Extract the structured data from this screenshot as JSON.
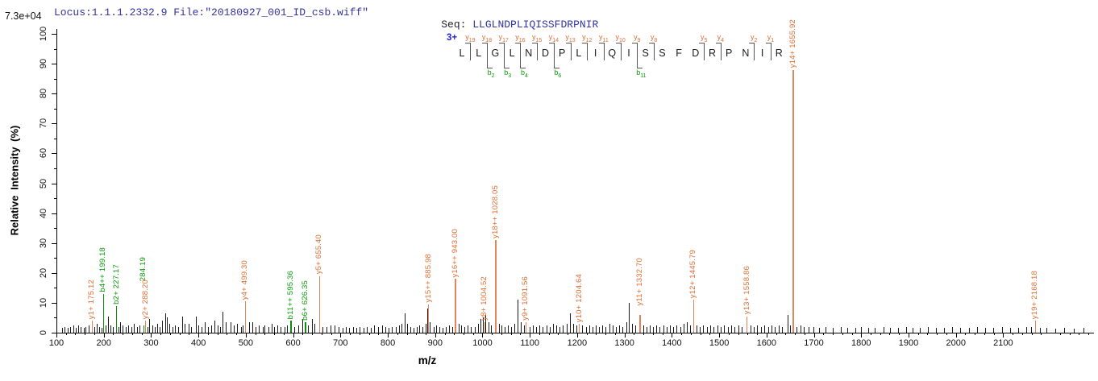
{
  "header": {
    "locus_file": "Locus:1.1.1.2332.9 File:\"20180927_001_ID_csb.wiff\"",
    "seq_label": "Seq:",
    "sequence": "LLGLNDPLIQISSFDRPNIR"
  },
  "colors": {
    "header_text": "#32329E",
    "charge_text": "#1F1FD6",
    "y_ion_text": "#DC6F33",
    "y_ion_line": "#E2855A",
    "b_ion_text": "#0B9B0B",
    "b_ion_line": "#0D8C0D",
    "noise_line": "#1a1a1a",
    "axis": "#000000"
  },
  "ladder": {
    "charge": "3+",
    "residues": [
      "L",
      "L",
      "G",
      "L",
      "N",
      "D",
      "P",
      "L",
      "I",
      "Q",
      "I",
      "S",
      "S",
      "F",
      "D",
      "R",
      "P",
      "N",
      "I",
      "R"
    ],
    "y_ion_ticks": [
      {
        "after": 1,
        "label": "y19"
      },
      {
        "after": 2,
        "label": "y18"
      },
      {
        "after": 3,
        "label": "y17"
      },
      {
        "after": 4,
        "label": "y16"
      },
      {
        "after": 5,
        "label": "y15"
      },
      {
        "after": 6,
        "label": "y14"
      },
      {
        "after": 7,
        "label": "y13"
      },
      {
        "after": 8,
        "label": "y12"
      },
      {
        "after": 9,
        "label": "y11"
      },
      {
        "after": 10,
        "label": "y10"
      },
      {
        "after": 11,
        "label": "y9"
      },
      {
        "after": 12,
        "label": "y8"
      },
      {
        "after": 15,
        "label": "y5"
      },
      {
        "after": 16,
        "label": "y4"
      },
      {
        "after": 18,
        "label": "y2"
      },
      {
        "after": 19,
        "label": "y1"
      }
    ],
    "b_ion_ticks": [
      {
        "after": 2,
        "label": "b2"
      },
      {
        "after": 3,
        "label": "b3"
      },
      {
        "after": 4,
        "label": "b4"
      },
      {
        "after": 6,
        "label": "b6"
      },
      {
        "after": 11,
        "label": "b11"
      }
    ]
  },
  "chart_data": {
    "type": "bar",
    "subtype": "mass-spectrum",
    "title": "",
    "xlabel": "m/z",
    "ylabel": "Relative Intensity (%)",
    "intensity_scale_label": "7.3e+04",
    "xlim": [
      100,
      2290
    ],
    "ylim": [
      0,
      100
    ],
    "x_ticks": [
      100,
      200,
      300,
      400,
      500,
      600,
      700,
      800,
      900,
      1000,
      1100,
      1200,
      1300,
      1400,
      1500,
      1600,
      1700,
      1800,
      1900,
      2000,
      2100
    ],
    "x_minor_step": 20,
    "y_ticks": [
      0,
      10,
      20,
      30,
      40,
      50,
      60,
      70,
      80,
      90,
      100
    ],
    "y_minor_step": 5,
    "grid": false,
    "labeled_peaks": [
      {
        "label": "y1+ 175.12",
        "mz": 175.12,
        "intensity": 4,
        "type": "y"
      },
      {
        "label": "b4++ 199.18",
        "mz": 199.18,
        "intensity": 13,
        "type": "b"
      },
      {
        "label": "b2+ 227.17",
        "mz": 227.17,
        "intensity": 9,
        "type": "b"
      },
      {
        "label": "284.19",
        "mz": 284.19,
        "intensity": 2.5,
        "type": "b",
        "lift": 52
      },
      {
        "label": "y2+ 288.20",
        "mz": 288.2,
        "intensity": 4,
        "type": "y"
      },
      {
        "label": "y4+ 499.30",
        "mz": 499.3,
        "intensity": 10.5,
        "type": "y"
      },
      {
        "label": "b11++ 595.36",
        "mz": 595.36,
        "intensity": 4,
        "type": "b"
      },
      {
        "label": "b6+ 626.35",
        "mz": 626.35,
        "intensity": 3.5,
        "type": "b"
      },
      {
        "label": "y5+ 655.40",
        "mz": 655.4,
        "intensity": 19,
        "type": "y"
      },
      {
        "label": "y15++ 885.98",
        "mz": 885.98,
        "intensity": 9.5,
        "type": "y"
      },
      {
        "label": "y16++ 943.00",
        "mz": 943.0,
        "intensity": 18,
        "type": "y"
      },
      {
        "label": "y8+ 1004.52",
        "mz": 1004.52,
        "intensity": 3.5,
        "type": "y"
      },
      {
        "label": "y18++ 1028.05",
        "mz": 1028.05,
        "intensity": 31,
        "type": "y"
      },
      {
        "label": "y9+ 1091.56",
        "mz": 1091.56,
        "intensity": 3.5,
        "type": "y"
      },
      {
        "label": "y10+ 1204.64",
        "mz": 1204.64,
        "intensity": 3,
        "type": "y"
      },
      {
        "label": "y11+ 1332.70",
        "mz": 1332.7,
        "intensity": 6,
        "type": "y",
        "lift": 9
      },
      {
        "label": "y12+ 1445.79",
        "mz": 1445.79,
        "intensity": 11,
        "type": "y"
      },
      {
        "label": "y13+ 1558.86",
        "mz": 1558.86,
        "intensity": 5.5,
        "type": "y"
      },
      {
        "label": "y14+ 1655.92",
        "mz": 1655.92,
        "intensity": 88,
        "type": "y"
      },
      {
        "label": "y19+ 2168.18",
        "mz": 2168.18,
        "intensity": 4,
        "type": "y"
      }
    ],
    "noise_peaks": [
      [
        113,
        1.5
      ],
      [
        118,
        2
      ],
      [
        124,
        1.5
      ],
      [
        130,
        2
      ],
      [
        136,
        2.5
      ],
      [
        141,
        1.5
      ],
      [
        147,
        2.5
      ],
      [
        152,
        2
      ],
      [
        158,
        1.5
      ],
      [
        163,
        2
      ],
      [
        169,
        2.5
      ],
      [
        181,
        2
      ],
      [
        186,
        3
      ],
      [
        191,
        2
      ],
      [
        196,
        1.5
      ],
      [
        204,
        2.5
      ],
      [
        210,
        5.5
      ],
      [
        215,
        2.5
      ],
      [
        220,
        2
      ],
      [
        232,
        2
      ],
      [
        236,
        3.5
      ],
      [
        241,
        2.5
      ],
      [
        247,
        2
      ],
      [
        253,
        2.5
      ],
      [
        259,
        2
      ],
      [
        265,
        3
      ],
      [
        271,
        2
      ],
      [
        277,
        2.5
      ],
      [
        293,
        2
      ],
      [
        297,
        4.5
      ],
      [
        303,
        2.5
      ],
      [
        308,
        2
      ],
      [
        313,
        3
      ],
      [
        319,
        2
      ],
      [
        324,
        4
      ],
      [
        330,
        6.5
      ],
      [
        334,
        5
      ],
      [
        339,
        3
      ],
      [
        346,
        2
      ],
      [
        352,
        2.5
      ],
      [
        358,
        2
      ],
      [
        366,
        5.5
      ],
      [
        372,
        3
      ],
      [
        380,
        3
      ],
      [
        386,
        2
      ],
      [
        395,
        5.5
      ],
      [
        401,
        2.5
      ],
      [
        408,
        2
      ],
      [
        415,
        3.5
      ],
      [
        421,
        2
      ],
      [
        428,
        2.5
      ],
      [
        435,
        4
      ],
      [
        441,
        2.5
      ],
      [
        447,
        2
      ],
      [
        452,
        7
      ],
      [
        459,
        3.5
      ],
      [
        469,
        3.5
      ],
      [
        476,
        2.5
      ],
      [
        483,
        3
      ],
      [
        490,
        2
      ],
      [
        495,
        2.5
      ],
      [
        508,
        3.5
      ],
      [
        515,
        3.5
      ],
      [
        522,
        2
      ],
      [
        529,
        2.5
      ],
      [
        536,
        2
      ],
      [
        541,
        2.5
      ],
      [
        548,
        2
      ],
      [
        555,
        3
      ],
      [
        561,
        2
      ],
      [
        568,
        2.5
      ],
      [
        575,
        2
      ],
      [
        582,
        2
      ],
      [
        588,
        2.5
      ],
      [
        597,
        3.5
      ],
      [
        604,
        2
      ],
      [
        611,
        2.5
      ],
      [
        620,
        4.5
      ],
      [
        633,
        2.5
      ],
      [
        640,
        4.5
      ],
      [
        645,
        3
      ],
      [
        663,
        2
      ],
      [
        672,
        2
      ],
      [
        680,
        2.5
      ],
      [
        689,
        2.5
      ],
      [
        697,
        2
      ],
      [
        705,
        1.5
      ],
      [
        712,
        2
      ],
      [
        719,
        1.5
      ],
      [
        727,
        2
      ],
      [
        734,
        1.5
      ],
      [
        742,
        2
      ],
      [
        750,
        1.5
      ],
      [
        757,
        2
      ],
      [
        765,
        1.5
      ],
      [
        772,
        2.5
      ],
      [
        780,
        2
      ],
      [
        788,
        2.5
      ],
      [
        795,
        2
      ],
      [
        803,
        1.5
      ],
      [
        810,
        2
      ],
      [
        818,
        2
      ],
      [
        824,
        2.5
      ],
      [
        830,
        3
      ],
      [
        836,
        6.5
      ],
      [
        842,
        3
      ],
      [
        849,
        2
      ],
      [
        856,
        1.5
      ],
      [
        862,
        2
      ],
      [
        868,
        2.5
      ],
      [
        874,
        2
      ],
      [
        880,
        3
      ],
      [
        884,
        8
      ],
      [
        890,
        3.5
      ],
      [
        897,
        2
      ],
      [
        903,
        2.5
      ],
      [
        910,
        2
      ],
      [
        917,
        1.5
      ],
      [
        924,
        2
      ],
      [
        930,
        2.5
      ],
      [
        937,
        2
      ],
      [
        950,
        3
      ],
      [
        956,
        2.5
      ],
      [
        963,
        2
      ],
      [
        970,
        2.5
      ],
      [
        977,
        2
      ],
      [
        984,
        2
      ],
      [
        991,
        3
      ],
      [
        996,
        4.5
      ],
      [
        1001,
        5
      ],
      [
        1007,
        6
      ],
      [
        1013,
        3.5
      ],
      [
        1019,
        2.5
      ],
      [
        1035,
        3
      ],
      [
        1041,
        2.5
      ],
      [
        1048,
        2
      ],
      [
        1055,
        2.5
      ],
      [
        1062,
        2
      ],
      [
        1068,
        3
      ],
      [
        1075,
        11
      ],
      [
        1081,
        3.5
      ],
      [
        1088,
        2.5
      ],
      [
        1100,
        2
      ],
      [
        1107,
        2.5
      ],
      [
        1114,
        2
      ],
      [
        1121,
        2.5
      ],
      [
        1128,
        2
      ],
      [
        1136,
        2.5
      ],
      [
        1143,
        2
      ],
      [
        1150,
        3
      ],
      [
        1157,
        2.5
      ],
      [
        1164,
        2
      ],
      [
        1171,
        2.5
      ],
      [
        1179,
        3
      ],
      [
        1186,
        6.5
      ],
      [
        1192,
        3
      ],
      [
        1199,
        2.5
      ],
      [
        1212,
        2.5
      ],
      [
        1219,
        2
      ],
      [
        1226,
        2.5
      ],
      [
        1233,
        2
      ],
      [
        1240,
        2.5
      ],
      [
        1247,
        2
      ],
      [
        1254,
        2.5
      ],
      [
        1261,
        2
      ],
      [
        1269,
        3
      ],
      [
        1276,
        2.5
      ],
      [
        1283,
        2
      ],
      [
        1290,
        2.5
      ],
      [
        1297,
        2
      ],
      [
        1304,
        3.5
      ],
      [
        1310,
        10
      ],
      [
        1316,
        3
      ],
      [
        1323,
        2.5
      ],
      [
        1340,
        2.5
      ],
      [
        1347,
        2
      ],
      [
        1354,
        2.5
      ],
      [
        1361,
        2
      ],
      [
        1368,
        2.5
      ],
      [
        1375,
        2
      ],
      [
        1383,
        2.5
      ],
      [
        1390,
        2
      ],
      [
        1397,
        2.5
      ],
      [
        1404,
        2
      ],
      [
        1411,
        2.5
      ],
      [
        1419,
        2
      ],
      [
        1426,
        3
      ],
      [
        1433,
        3.5
      ],
      [
        1440,
        2.5
      ],
      [
        1453,
        2.5
      ],
      [
        1460,
        2
      ],
      [
        1467,
        2.5
      ],
      [
        1475,
        2
      ],
      [
        1482,
        2.5
      ],
      [
        1489,
        2
      ],
      [
        1497,
        2.5
      ],
      [
        1504,
        2
      ],
      [
        1511,
        2.5
      ],
      [
        1519,
        2
      ],
      [
        1526,
        2.5
      ],
      [
        1533,
        2
      ],
      [
        1541,
        2.5
      ],
      [
        1548,
        2
      ],
      [
        1567,
        2.5
      ],
      [
        1574,
        2
      ],
      [
        1581,
        2.5
      ],
      [
        1589,
        2
      ],
      [
        1596,
        2.5
      ],
      [
        1604,
        2
      ],
      [
        1611,
        2.5
      ],
      [
        1618,
        2
      ],
      [
        1626,
        2.5
      ],
      [
        1634,
        2
      ],
      [
        1645,
        6
      ],
      [
        1651,
        2.5
      ],
      [
        1664,
        2
      ],
      [
        1672,
        2.5
      ],
      [
        1680,
        2
      ],
      [
        1690,
        2
      ],
      [
        1700,
        2
      ],
      [
        1712,
        1.5
      ],
      [
        1725,
        2
      ],
      [
        1740,
        1.5
      ],
      [
        1758,
        1.8
      ],
      [
        1772,
        1.5
      ],
      [
        1788,
        1.5
      ],
      [
        1800,
        1.8
      ],
      [
        1815,
        1.5
      ],
      [
        1830,
        1.5
      ],
      [
        1848,
        1.8
      ],
      [
        1862,
        1.5
      ],
      [
        1878,
        1.5
      ],
      [
        1895,
        1.8
      ],
      [
        1910,
        1.5
      ],
      [
        1925,
        1.5
      ],
      [
        1942,
        1.8
      ],
      [
        1958,
        1.5
      ],
      [
        1975,
        1.5
      ],
      [
        1992,
        1.8
      ],
      [
        2010,
        1.5
      ],
      [
        2028,
        1.5
      ],
      [
        2045,
        1.8
      ],
      [
        2062,
        1.5
      ],
      [
        2080,
        1.5
      ],
      [
        2098,
        1.8
      ],
      [
        2115,
        1.5
      ],
      [
        2132,
        1.5
      ],
      [
        2150,
        1.8
      ],
      [
        2160,
        2
      ],
      [
        2178,
        1.5
      ],
      [
        2192,
        1.5
      ],
      [
        2210,
        1.3
      ],
      [
        2230,
        1.5
      ],
      [
        2250,
        1.3
      ],
      [
        2270,
        1.5
      ]
    ]
  }
}
